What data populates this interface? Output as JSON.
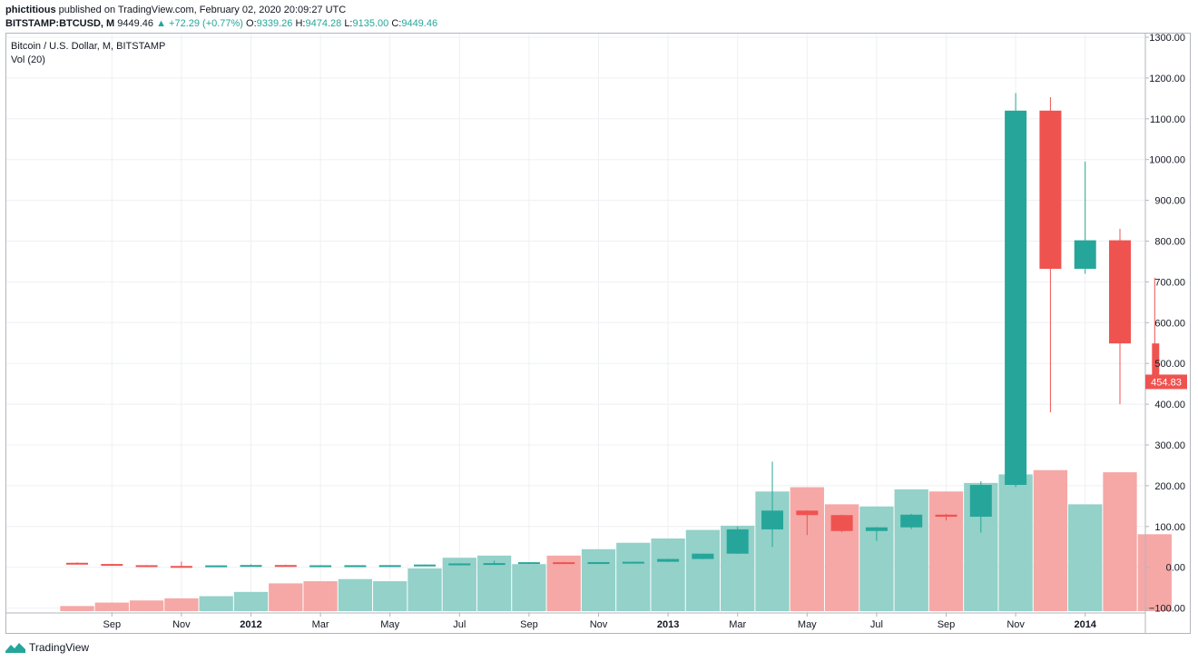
{
  "header": {
    "author": "phictitious",
    "published_text": "published on TradingView.com, February 02, 2020 20:09:27 UTC"
  },
  "ohlc": {
    "symbol": "BITSTAMP:BTCUSD, M",
    "price": "9449.46",
    "change": "▲ +72.29 (+0.77%)",
    "o_label": "O:",
    "o": "9339.26",
    "h_label": "H:",
    "h": "9474.28",
    "l_label": "L:",
    "l": "9135.00",
    "c_label": "C:",
    "c": "9449.46"
  },
  "legend": {
    "title": "Bitcoin / U.S. Dollar, M, BITSTAMP",
    "volume": "Vol (20)"
  },
  "brand": {
    "name": "TradingView"
  },
  "colors": {
    "up": "#26a69a",
    "down": "#ef5350",
    "vol_up": "#93d1c9",
    "vol_down": "#f5a8a6",
    "grid": "#eef0f3",
    "axis": "#b2b5be"
  },
  "chart_data": {
    "type": "candlestick",
    "price_label": {
      "value": 454.83,
      "text": "454.83"
    },
    "ylim": [
      -100,
      1300
    ],
    "y_ticks": [
      1300,
      1200,
      1100,
      1000,
      900,
      800,
      700,
      600,
      500,
      400,
      300,
      200,
      100,
      0,
      -100
    ],
    "y_tick_labels": [
      "1300.00",
      "1200.00",
      "1100.00",
      "1000.00",
      "900.00",
      "800.00",
      "700.00",
      "600.00",
      "500.00",
      "400.00",
      "300.00",
      "200.00",
      "100.00",
      "0.00",
      "−100.00"
    ],
    "x_tick_labels": [
      {
        "month": "2011-09",
        "label": "Sep"
      },
      {
        "month": "2011-11",
        "label": "Nov"
      },
      {
        "month": "2012-01",
        "label": "2012"
      },
      {
        "month": "2012-03",
        "label": "Mar"
      },
      {
        "month": "2012-05",
        "label": "May"
      },
      {
        "month": "2012-07",
        "label": "Jul"
      },
      {
        "month": "2012-09",
        "label": "Sep"
      },
      {
        "month": "2012-11",
        "label": "Nov"
      },
      {
        "month": "2013-01",
        "label": "2013"
      },
      {
        "month": "2013-03",
        "label": "Mar"
      },
      {
        "month": "2013-05",
        "label": "May"
      },
      {
        "month": "2013-07",
        "label": "Jul"
      },
      {
        "month": "2013-09",
        "label": "Sep"
      },
      {
        "month": "2013-11",
        "label": "Nov"
      },
      {
        "month": "2014-01",
        "label": "2014"
      }
    ],
    "months": [
      "2011-08",
      "2011-09",
      "2011-10",
      "2011-11",
      "2011-12",
      "2012-01",
      "2012-02",
      "2012-03",
      "2012-04",
      "2012-05",
      "2012-06",
      "2012-07",
      "2012-08",
      "2012-09",
      "2012-10",
      "2012-11",
      "2012-12",
      "2013-01",
      "2013-02",
      "2013-03",
      "2013-04",
      "2013-05",
      "2013-06",
      "2013-07",
      "2013-08",
      "2013-09",
      "2013-10",
      "2013-11",
      "2013-12",
      "2014-01",
      "2014-02",
      "2014-03"
    ],
    "candles": [
      {
        "o": 11,
        "h": 12,
        "l": 8,
        "c": 8
      },
      {
        "o": 8,
        "h": 8.5,
        "l": 4.5,
        "c": 5.1
      },
      {
        "o": 5.1,
        "h": 5.5,
        "l": 2.3,
        "c": 3.2
      },
      {
        "o": 3.2,
        "h": 14,
        "l": 2.0,
        "c": 3.0
      },
      {
        "o": 3.0,
        "h": 4.8,
        "l": 2.8,
        "c": 4.7
      },
      {
        "o": 4.7,
        "h": 7.2,
        "l": 4.2,
        "c": 5.5
      },
      {
        "o": 5.5,
        "h": 6.5,
        "l": 4.2,
        "c": 4.9
      },
      {
        "o": 4.9,
        "h": 5.4,
        "l": 4.6,
        "c": 4.9
      },
      {
        "o": 4.9,
        "h": 5.3,
        "l": 4.7,
        "c": 5.0
      },
      {
        "o": 5.0,
        "h": 5.3,
        "l": 4.9,
        "c": 5.2
      },
      {
        "o": 5.2,
        "h": 6.9,
        "l": 5.1,
        "c": 6.7
      },
      {
        "o": 6.7,
        "h": 9.7,
        "l": 6.4,
        "c": 9.4
      },
      {
        "o": 9.4,
        "h": 16,
        "l": 7.0,
        "c": 10.2
      },
      {
        "o": 10.2,
        "h": 12.6,
        "l": 9.9,
        "c": 12.4
      },
      {
        "o": 12.4,
        "h": 12.9,
        "l": 9.9,
        "c": 11.2
      },
      {
        "o": 11.2,
        "h": 12.6,
        "l": 10.2,
        "c": 12.6
      },
      {
        "o": 12.6,
        "h": 13.8,
        "l": 12.5,
        "c": 13.5
      },
      {
        "o": 13.5,
        "h": 20.8,
        "l": 13.2,
        "c": 20.4
      },
      {
        "o": 20.4,
        "h": 33.5,
        "l": 19.6,
        "c": 33.4
      },
      {
        "o": 33.4,
        "h": 99,
        "l": 33.0,
        "c": 93.0
      },
      {
        "o": 93.0,
        "h": 259,
        "l": 50.0,
        "c": 139.0
      },
      {
        "o": 139.0,
        "h": 140,
        "l": 79,
        "c": 128.0
      },
      {
        "o": 128.0,
        "h": 129,
        "l": 86,
        "c": 89.0
      },
      {
        "o": 89.0,
        "h": 99,
        "l": 65,
        "c": 98.0
      },
      {
        "o": 98.0,
        "h": 131,
        "l": 94,
        "c": 129.0
      },
      {
        "o": 129.0,
        "h": 131,
        "l": 115,
        "c": 124.0
      },
      {
        "o": 124.0,
        "h": 211,
        "l": 85,
        "c": 202.0
      },
      {
        "o": 202.0,
        "h": 1163,
        "l": 197,
        "c": 1120.0
      },
      {
        "o": 1120.0,
        "h": 1153,
        "l": 380,
        "c": 732.0
      },
      {
        "o": 732.0,
        "h": 995,
        "l": 720,
        "c": 802.0
      },
      {
        "o": 802.0,
        "h": 830,
        "l": 400,
        "c": 549.0
      },
      {
        "o": 549.0,
        "h": 710,
        "l": 440,
        "c": 454.83
      }
    ],
    "volume": {
      "name": "Vol (20)",
      "max": 3400000,
      "values": [
        120000,
        200000,
        250000,
        300000,
        350000,
        450000,
        650000,
        700000,
        750000,
        700000,
        1000000,
        1250000,
        1300000,
        1100000,
        1300000,
        1450000,
        1600000,
        1700000,
        1900000,
        2000000,
        2800000,
        2900000,
        2500000,
        2450000,
        2850000,
        2800000,
        3000000,
        3200000,
        3300000,
        2500000,
        3250000,
        1800000
      ],
      "up": [
        false,
        false,
        false,
        false,
        true,
        true,
        false,
        false,
        true,
        true,
        true,
        true,
        true,
        true,
        false,
        true,
        true,
        true,
        true,
        true,
        true,
        false,
        false,
        true,
        true,
        false,
        true,
        true,
        false,
        true,
        false,
        false
      ]
    }
  }
}
